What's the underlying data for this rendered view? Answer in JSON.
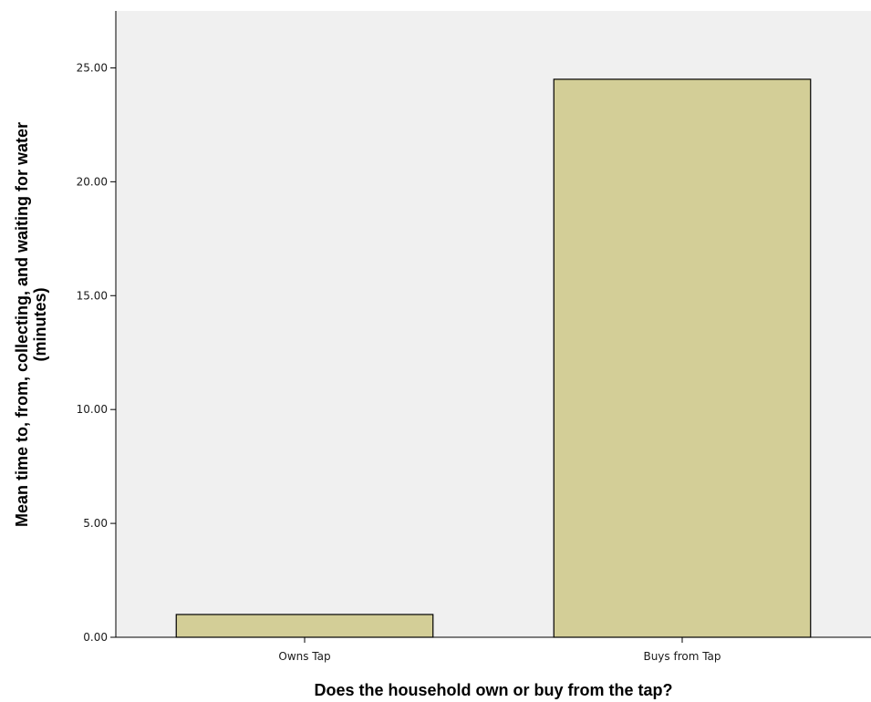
{
  "chart_data": {
    "type": "bar",
    "title": "",
    "xlabel": "Does the household own or buy from the tap?",
    "ylabel_line1": "Mean time to, from, collecting, and waiting for water",
    "ylabel_line2": "(minutes)",
    "categories": [
      "Owns Tap",
      "Buys from Tap"
    ],
    "values": [
      1.0,
      24.5
    ],
    "ylim": [
      0,
      27.5
    ],
    "yticks": [
      0,
      5,
      10,
      15,
      20,
      25
    ],
    "ytick_labels": [
      "0.00",
      "5.00",
      "10.00",
      "15.00",
      "20.00",
      "25.00"
    ],
    "grid": false,
    "legend": "none"
  },
  "colors": {
    "plot_background": "#f0f0f0",
    "bar_fill": "#d3ce97",
    "bar_stroke": "#000000",
    "axis": "#000000"
  }
}
